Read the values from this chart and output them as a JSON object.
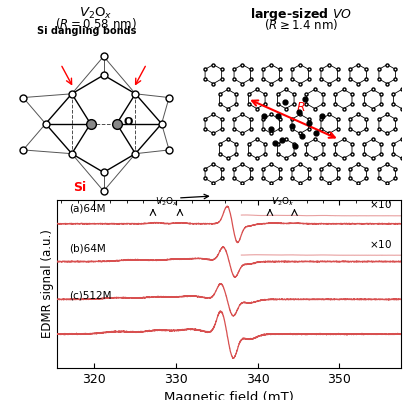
{
  "xlabel": "Magnetic field (mT)",
  "ylabel": "EDMR signal (a.u.)",
  "xlim": [
    315.5,
    357.5
  ],
  "x_ticks": [
    320,
    330,
    340,
    350
  ],
  "line_color": "#d85050",
  "line_color_light": "#e8a0a0",
  "background": "#ffffff",
  "label_a": "(a)64M",
  "label_b": "(b)64M",
  "label_c": "(c)512M",
  "heading_left_1": "$V_2\\mathrm{O}_x$",
  "heading_left_2": "$(R = 0.58\\ \\mathrm{nm})$",
  "heading_right_1": "large-sized $VO$",
  "heading_right_2": "$(R \\geq 1.4\\ \\mathrm{nm})$"
}
